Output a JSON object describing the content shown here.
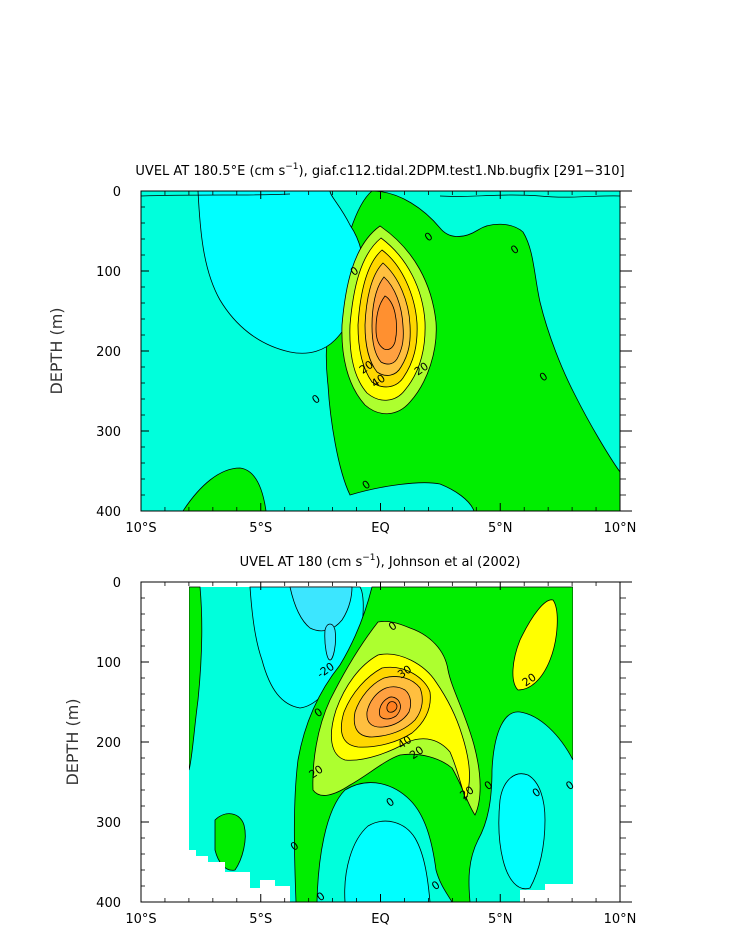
{
  "chart_data": [
    {
      "type": "contour",
      "title": "UVEL AT 180.5°E (cm s⁻¹), giaf.c112.tidal.2DPM.test1.Nb.bugfix [291–310]",
      "title_parts": {
        "before": "UVEL AT 180.5°E (cm s",
        "sup": "−1",
        "after": "), giaf.c112.tidal.2DPM.test1.Nb.bugfix [291−310]"
      },
      "xlabel": "",
      "ylabel": "DEPTH (m)",
      "xlim": [
        -10,
        10
      ],
      "ylim": [
        400,
        0
      ],
      "x_ticks": [
        -10,
        -5,
        0,
        5,
        10
      ],
      "x_tick_labels": [
        "10°S",
        "5°S",
        "EQ",
        "5°N",
        "10°N"
      ],
      "y_ticks": [
        0,
        100,
        200,
        300,
        400
      ],
      "y_tick_labels": [
        "0",
        "100",
        "200",
        "300",
        "400"
      ],
      "contour_interval": 10,
      "max_value": 60,
      "max_location": {
        "lat": 0,
        "depth": 165
      },
      "contour_labels": [
        {
          "text": "0",
          "lat": 2.0,
          "depth": 57
        },
        {
          "text": "0",
          "lat": 5.6,
          "depth": 73
        },
        {
          "text": "0",
          "lat": -1.1,
          "depth": 100
        },
        {
          "text": "20",
          "lat": -0.6,
          "depth": 220
        },
        {
          "text": "40",
          "lat": -0.1,
          "depth": 237
        },
        {
          "text": "20",
          "lat": 1.7,
          "depth": 222
        },
        {
          "text": "0",
          "lat": 6.8,
          "depth": 232
        },
        {
          "text": "0",
          "lat": -2.7,
          "depth": 260
        },
        {
          "text": "0",
          "lat": -0.6,
          "depth": 367
        }
      ]
    },
    {
      "type": "contour",
      "title": "UVEL AT 180 (cm s⁻¹), Johnson et al (2002)",
      "title_parts": {
        "before": "UVEL AT 180 (cm s",
        "sup": "−1",
        "after": "), Johnson et al (2002)"
      },
      "xlabel": "",
      "ylabel": "DEPTH (m)",
      "xlim": [
        -10,
        10
      ],
      "ylim": [
        400,
        0
      ],
      "x_ticks": [
        -10,
        -5,
        0,
        5,
        10
      ],
      "x_tick_labels": [
        "10°S",
        "5°S",
        "EQ",
        "5°N",
        "10°N"
      ],
      "y_ticks": [
        0,
        100,
        200,
        300,
        400
      ],
      "y_tick_labels": [
        "0",
        "100",
        "200",
        "300",
        "400"
      ],
      "data_lat_range": [
        -8,
        8
      ],
      "contour_interval": 10,
      "max_value": 70,
      "max_location": {
        "lat": 0.5,
        "depth": 170
      },
      "contour_labels": [
        {
          "text": "-20",
          "lat": -2.3,
          "depth": 110
        },
        {
          "text": "0",
          "lat": 0.5,
          "depth": 55
        },
        {
          "text": "30",
          "lat": 1.0,
          "depth": 112
        },
        {
          "text": "20",
          "lat": 6.2,
          "depth": 122
        },
        {
          "text": "0",
          "lat": -2.6,
          "depth": 163
        },
        {
          "text": "40",
          "lat": 1.0,
          "depth": 200
        },
        {
          "text": "20",
          "lat": 1.5,
          "depth": 213
        },
        {
          "text": "20",
          "lat": -2.7,
          "depth": 237
        },
        {
          "text": "20",
          "lat": 3.6,
          "depth": 263
        },
        {
          "text": "0",
          "lat": 4.5,
          "depth": 254
        },
        {
          "text": "0",
          "lat": 6.5,
          "depth": 263
        },
        {
          "text": "0",
          "lat": 7.9,
          "depth": 254
        },
        {
          "text": "0",
          "lat": 0.4,
          "depth": 275
        },
        {
          "text": "0",
          "lat": -3.6,
          "depth": 330
        },
        {
          "text": "0",
          "lat": 2.3,
          "depth": 379
        },
        {
          "text": "0",
          "lat": -2.5,
          "depth": 393
        }
      ]
    }
  ]
}
